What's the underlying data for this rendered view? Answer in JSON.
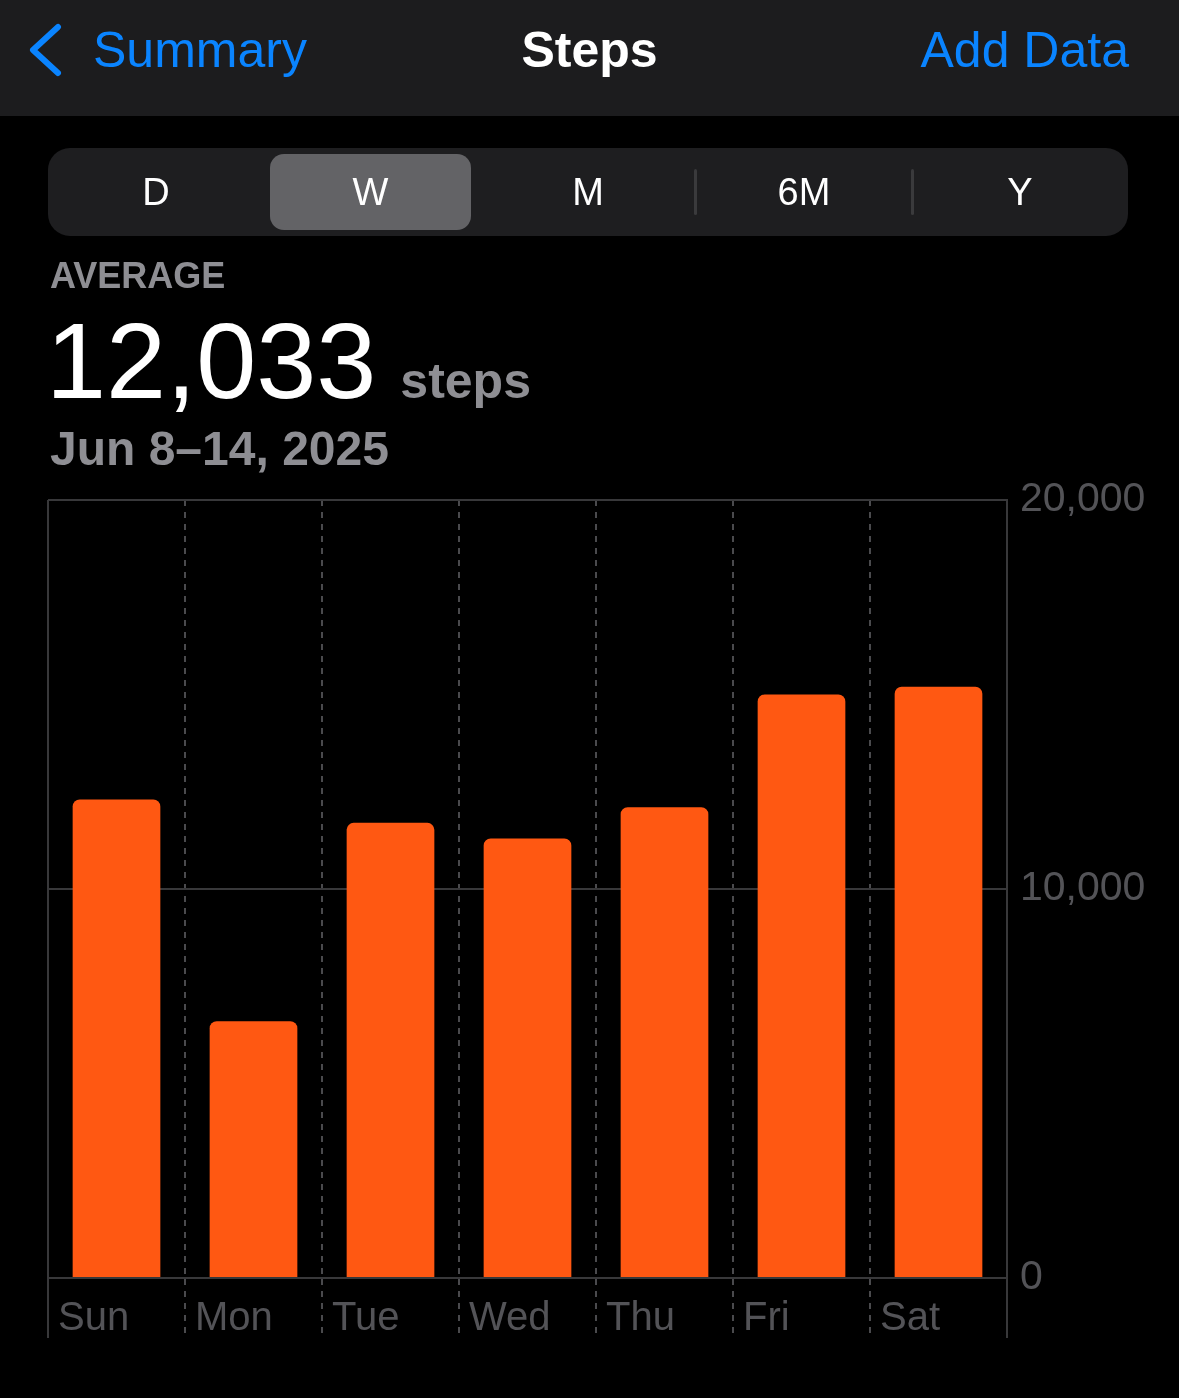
{
  "chart_data": {
    "type": "bar",
    "title": "Steps",
    "annotations": [
      "Summary",
      "Add Data",
      "D",
      "W",
      "M",
      "6M",
      "Y",
      "AVERAGE",
      "12,033",
      "steps",
      "Jun 8–14, 2025"
    ],
    "categories": [
      "Sun",
      "Mon",
      "Tue",
      "Wed",
      "Thu",
      "Fri",
      "Sat"
    ],
    "values": [
      12300,
      6600,
      11700,
      11300,
      12100,
      15000,
      15200
    ],
    "color": "#ff5812",
    "ylim": [
      0,
      20000
    ],
    "yticks": [
      {
        "value": 0,
        "label": "0"
      },
      {
        "value": 10000,
        "label": "10,000"
      },
      {
        "value": 20000,
        "label": "20,000"
      }
    ],
    "grid": true
  }
}
